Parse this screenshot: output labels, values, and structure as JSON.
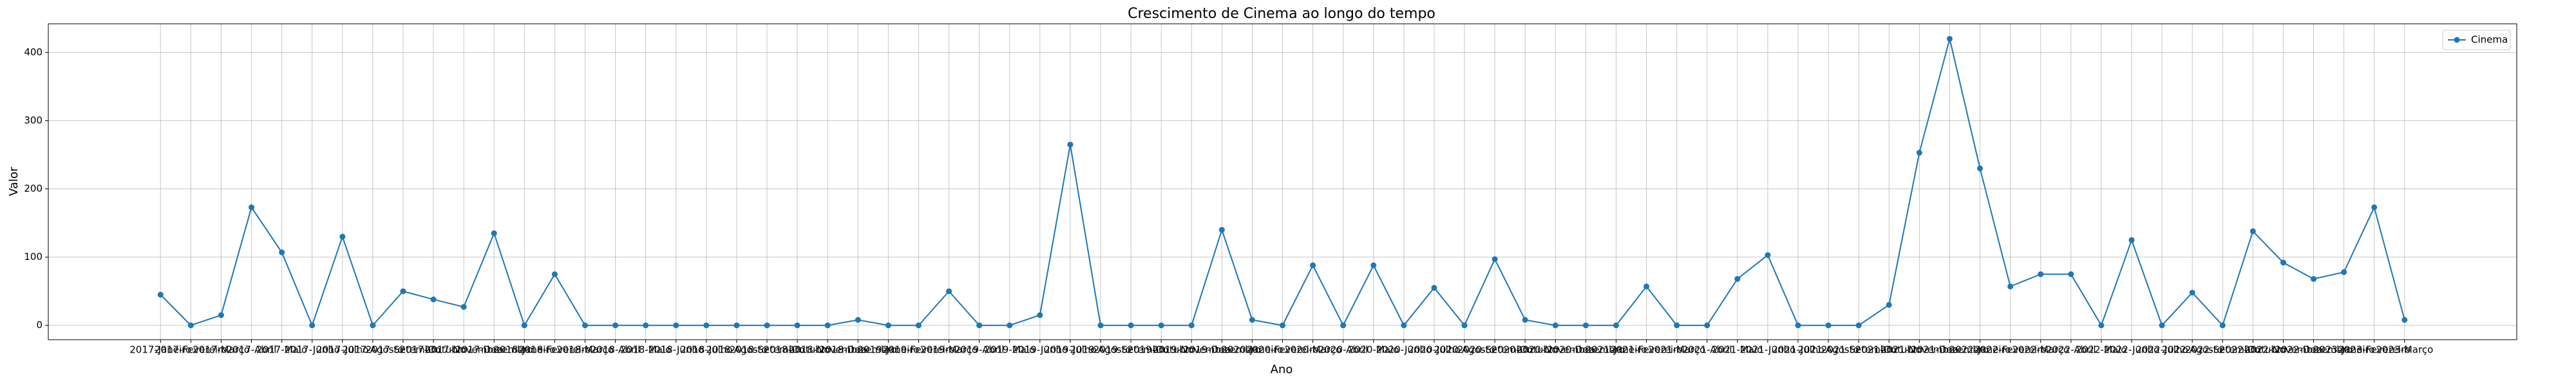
{
  "chart_data": {
    "type": "line",
    "title": "Crescimento de Cinema ao longo do tempo",
    "x_label": "Ano",
    "y_label": "Valor",
    "categories": [
      "2017-Janeiro",
      "2017-Fevereiro",
      "2017-Março",
      "2017-Abril",
      "2017-Maio",
      "2017-Junho",
      "2017-Julho",
      "2017-Agosto",
      "2017-Setembro",
      "2017-Outubro",
      "2017-Novembro",
      "2017-Dezembro",
      "2018-Janeiro",
      "2018-Fevereiro",
      "2018-Março",
      "2018-Abril",
      "2018-Maio",
      "2018-Junho",
      "2018-Julho",
      "2018-Agosto",
      "2018-Setembro",
      "2018-Outubro",
      "2018-Novembro",
      "2018-Dezembro",
      "2019-Janeiro",
      "2019-Fevereiro",
      "2019-Março",
      "2019-Abril",
      "2019-Maio",
      "2019-Junho",
      "2019-Julho",
      "2019-Agosto",
      "2019-Setembro",
      "2019-Outubro",
      "2019-Novembro",
      "2019-Dezembro",
      "2020-Janeiro",
      "2020-Fevereiro",
      "2020-Março",
      "2020-Abril",
      "2020-Maio",
      "2020-Junho",
      "2020-Julho",
      "2020-Agosto",
      "2020-Setembro",
      "2020-Outubro",
      "2020-Novembro",
      "2020-Dezembro",
      "2021-Janeiro",
      "2021-Fevereiro",
      "2021-Março",
      "2021-Abril",
      "2021-Maio",
      "2021-Junho",
      "2021-Julho",
      "2021-Agosto",
      "2021-Setembro",
      "2021-Outubro",
      "2021-Novembro",
      "2021-Dezembro",
      "2022-Janeiro",
      "2022-Fevereiro",
      "2022-Março",
      "2022-Abril",
      "2022-Maio",
      "2022-Junho",
      "2022-Julho",
      "2022-Agosto",
      "2022-Setembro",
      "2022-Outubro",
      "2022-Novembro",
      "2022-Dezembro",
      "2023-Janeiro",
      "2023-Fevereiro",
      "2023-Março"
    ],
    "series": [
      {
        "name": "Cinema",
        "color": "#1f77b4",
        "values": [
          45,
          0,
          15,
          173,
          107,
          0,
          130,
          0,
          50,
          38,
          27,
          135,
          0,
          75,
          0,
          0,
          0,
          0,
          0,
          0,
          0,
          0,
          0,
          8,
          0,
          0,
          50,
          0,
          0,
          15,
          265,
          0,
          0,
          0,
          0,
          140,
          8,
          0,
          88,
          0,
          88,
          0,
          55,
          0,
          97,
          8,
          0,
          0,
          0,
          57,
          0,
          0,
          68,
          103,
          0,
          0,
          0,
          30,
          253,
          420,
          230,
          57,
          75,
          75,
          0,
          125,
          0,
          48,
          0,
          138,
          92,
          68,
          78,
          173,
          8
        ]
      }
    ],
    "ylim": [
      -21,
      442
    ],
    "yticks": [
      0,
      100,
      200,
      300,
      400
    ],
    "grid": true,
    "legend": "upper right"
  }
}
